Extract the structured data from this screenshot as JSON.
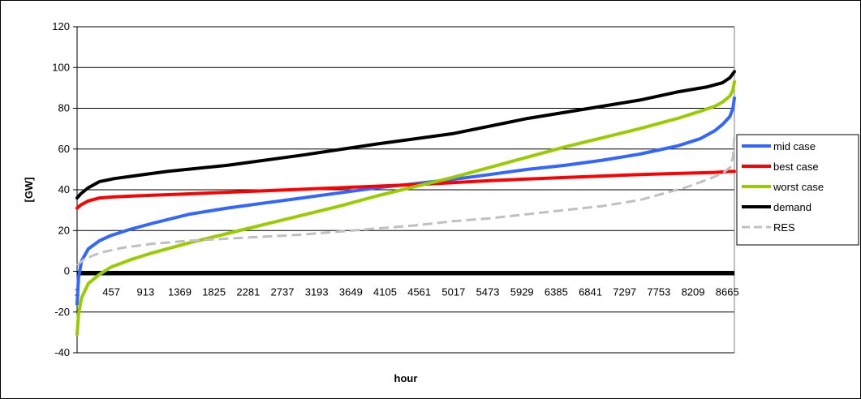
{
  "chart_data": {
    "type": "line",
    "title": "",
    "xlabel": "hour",
    "ylabel": "[GW]",
    "ylim": [
      -40,
      120
    ],
    "xlim": [
      1,
      8760
    ],
    "y_ticks": [
      -40,
      -20,
      0,
      20,
      40,
      60,
      80,
      100,
      120
    ],
    "x_tick_labels": [
      "1",
      "457",
      "913",
      "1369",
      "1825",
      "2281",
      "2737",
      "3193",
      "3649",
      "4105",
      "4561",
      "5017",
      "5473",
      "5929",
      "6385",
      "6841",
      "7297",
      "7753",
      "8209",
      "8665"
    ],
    "grid": "horizontal",
    "legend_position": "right",
    "zero_line": {
      "y": -1,
      "color": "#000000"
    },
    "series": [
      {
        "name": "mid case",
        "color": "#3366ff",
        "style": "solid",
        "x": [
          1,
          20,
          60,
          150,
          300,
          450,
          700,
          1000,
          1500,
          2000,
          2500,
          3000,
          3500,
          4000,
          4500,
          5000,
          5500,
          6000,
          6500,
          7000,
          7500,
          8000,
          8300,
          8500,
          8600,
          8700,
          8740,
          8760
        ],
        "y": [
          -16,
          -3,
          5,
          11,
          15,
          17.5,
          20.5,
          23.5,
          28,
          31,
          33.5,
          36,
          38.5,
          41,
          43,
          45,
          47.5,
          50,
          52,
          54.5,
          57.5,
          61.5,
          65,
          69,
          72,
          76,
          80,
          85
        ]
      },
      {
        "name": "best case",
        "color": "#ff0000",
        "style": "solid",
        "x": [
          1,
          50,
          150,
          300,
          500,
          800,
          1500,
          2500,
          3500,
          4500,
          5500,
          6500,
          7500,
          8000,
          8500,
          8700,
          8760
        ],
        "y": [
          31,
          32.5,
          34.5,
          36,
          36.5,
          37,
          38,
          39.5,
          41,
          42.5,
          44.5,
          46,
          47.5,
          48,
          48.5,
          49,
          49
        ]
      },
      {
        "name": "worst case",
        "color": "#99cc00",
        "style": "solid",
        "x": [
          1,
          20,
          60,
          150,
          300,
          450,
          700,
          1000,
          1500,
          2000,
          2500,
          3000,
          3500,
          4000,
          4500,
          5000,
          5500,
          6000,
          6500,
          7000,
          7500,
          8000,
          8300,
          8500,
          8600,
          8700,
          8740,
          8760
        ],
        "y": [
          -31,
          -21,
          -13,
          -6,
          -1.5,
          2,
          5.5,
          9,
          14,
          18.5,
          23,
          27.5,
          32,
          37,
          41.5,
          46,
          51,
          56,
          61,
          65.5,
          70,
          75,
          78.5,
          81,
          83,
          86,
          89,
          93
        ]
      },
      {
        "name": "demand",
        "color": "#000000",
        "style": "solid",
        "x": [
          1,
          50,
          150,
          300,
          500,
          800,
          1200,
          2000,
          3000,
          4000,
          5000,
          6000,
          7000,
          7500,
          8000,
          8400,
          8600,
          8700,
          8760
        ],
        "y": [
          36,
          38,
          41,
          44,
          45.5,
          47,
          49,
          52,
          57,
          62.5,
          67.5,
          75,
          81,
          84,
          88,
          90.5,
          92.5,
          95,
          98
        ]
      },
      {
        "name": "RES",
        "color": "#c0c0c0",
        "style": "dashed",
        "x": [
          1,
          100,
          300,
          600,
          1000,
          1500,
          2000,
          2500,
          3000,
          3500,
          4000,
          4500,
          5000,
          5500,
          6000,
          6500,
          7000,
          7500,
          7800,
          8100,
          8400,
          8600,
          8700,
          8740,
          8760
        ],
        "y": [
          3,
          6,
          9,
          11.5,
          13.5,
          15,
          16,
          17,
          18,
          19.5,
          21,
          22.5,
          24.5,
          26,
          28,
          30,
          32,
          35,
          38,
          41,
          45,
          48,
          51,
          56,
          67
        ]
      }
    ]
  }
}
